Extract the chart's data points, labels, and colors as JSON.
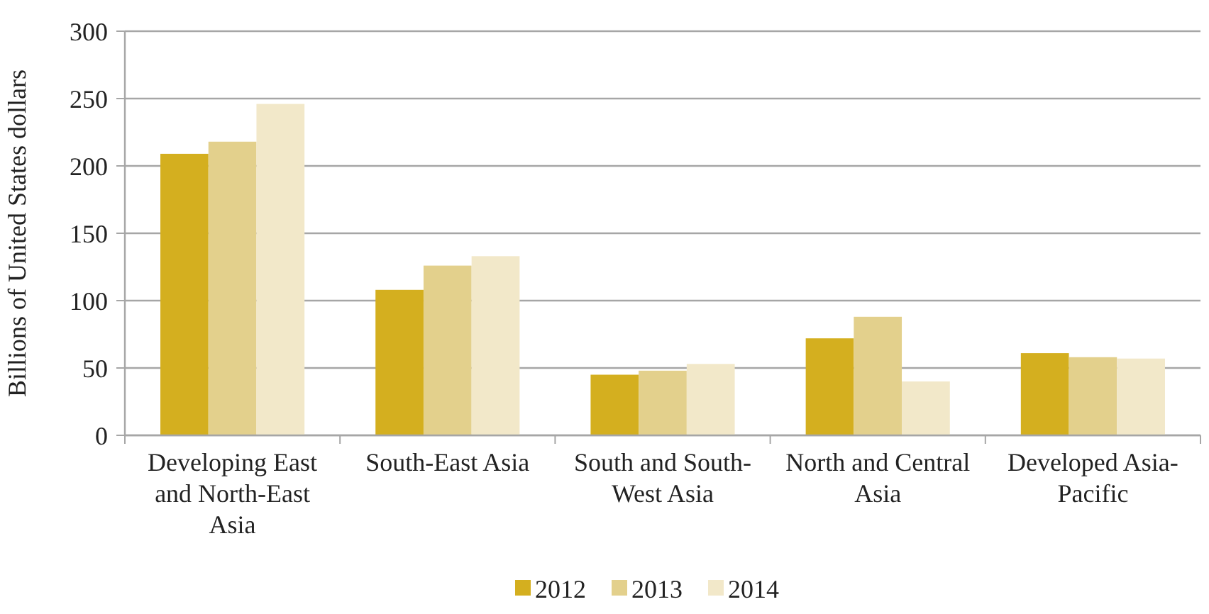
{
  "chart_data": {
    "type": "bar",
    "ylabel": "Billions of United States dollars",
    "categories": [
      "Developing East and North-East Asia",
      "South-East Asia",
      "South and South-West Asia",
      "North and Central Asia",
      "Developed Asia-Pacific"
    ],
    "series": [
      {
        "name": "2012",
        "color": "#d4af1f",
        "values": [
          209,
          108,
          45,
          72,
          61
        ]
      },
      {
        "name": "2013",
        "color": "#e3d08c",
        "values": [
          218,
          126,
          48,
          88,
          58
        ]
      },
      {
        "name": "2014",
        "color": "#f2e8c9",
        "values": [
          246,
          133,
          53,
          40,
          57
        ]
      }
    ],
    "ylim": [
      0,
      300
    ],
    "yticks": [
      0,
      50,
      100,
      150,
      200,
      250,
      300
    ],
    "grid": "y",
    "legend": "bottom"
  }
}
